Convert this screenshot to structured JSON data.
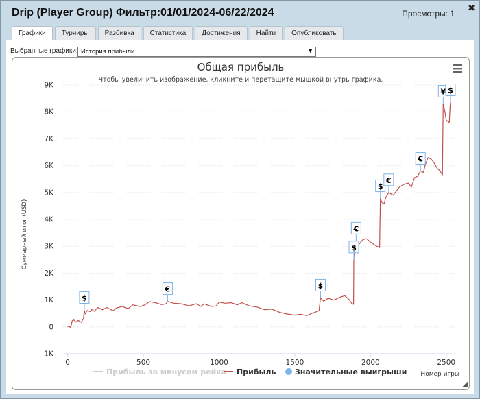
{
  "window": {
    "title": "Drip (Player Group) Фильтр:01/01/2024-06/22/2024",
    "views": "Просмотры: 1",
    "close_glyph": "✖"
  },
  "tabs": [
    {
      "label": "Графики",
      "active": true
    },
    {
      "label": "Турниры",
      "active": false
    },
    {
      "label": "Разбивка",
      "active": false
    },
    {
      "label": "Статистика",
      "active": false
    },
    {
      "label": "Достижения",
      "active": false
    },
    {
      "label": "Найти",
      "active": false
    },
    {
      "label": "Опубликовать",
      "active": false
    }
  ],
  "selector": {
    "label": "Выбранные графики:",
    "value": "История прибыли"
  },
  "chart_data": {
    "type": "line",
    "title": "Общая прибыль",
    "subtitle": "Чтобы увеличить изображение, кликните и перетащите мышкой внутрь графика.",
    "ylabel": "Суммарный итог (USD)",
    "xlabel": "Номер игры",
    "xlim": [
      -30,
      2560
    ],
    "ylim": [
      -1000,
      9000
    ],
    "xticks": [
      0,
      500,
      1000,
      1500,
      2000,
      2500
    ],
    "xtick_labels": [
      "0",
      "500",
      "1000",
      "1500",
      "2000",
      "2500"
    ],
    "yticks": [
      -1000,
      0,
      1000,
      2000,
      3000,
      4000,
      5000,
      6000,
      7000,
      8000,
      9000
    ],
    "ytick_labels": [
      "-1K",
      "0",
      "1K",
      "2K",
      "3K",
      "4K",
      "5K",
      "6K",
      "7K",
      "8K",
      "9K"
    ],
    "grid": true,
    "legend_position": "bottom",
    "legend": [
      {
        "name": "Прибыль за минусом рейка",
        "style": "line",
        "color": "#cccccc",
        "faded": true
      },
      {
        "name": "Прибыль",
        "style": "line",
        "color": "#c0504d",
        "faded": false
      },
      {
        "name": "Значительные выигрыши",
        "style": "circle",
        "color": "#7cb5ec",
        "faded": false
      }
    ],
    "series": [
      {
        "name": "Прибыль",
        "color": "#c0504d",
        "points": [
          [
            0,
            0
          ],
          [
            10,
            40
          ],
          [
            20,
            -40
          ],
          [
            30,
            230
          ],
          [
            40,
            260
          ],
          [
            55,
            180
          ],
          [
            70,
            240
          ],
          [
            90,
            170
          ],
          [
            105,
            320
          ],
          [
            110,
            620
          ],
          [
            115,
            480
          ],
          [
            130,
            610
          ],
          [
            150,
            570
          ],
          [
            160,
            650
          ],
          [
            175,
            580
          ],
          [
            200,
            720
          ],
          [
            230,
            640
          ],
          [
            260,
            720
          ],
          [
            300,
            600
          ],
          [
            320,
            700
          ],
          [
            360,
            760
          ],
          [
            400,
            680
          ],
          [
            430,
            820
          ],
          [
            480,
            760
          ],
          [
            510,
            820
          ],
          [
            540,
            940
          ],
          [
            580,
            900
          ],
          [
            620,
            830
          ],
          [
            650,
            860
          ],
          [
            660,
            950
          ],
          [
            700,
            880
          ],
          [
            750,
            860
          ],
          [
            800,
            780
          ],
          [
            850,
            860
          ],
          [
            880,
            760
          ],
          [
            900,
            860
          ],
          [
            950,
            760
          ],
          [
            980,
            780
          ],
          [
            1000,
            920
          ],
          [
            1040,
            880
          ],
          [
            1080,
            900
          ],
          [
            1120,
            820
          ],
          [
            1150,
            900
          ],
          [
            1200,
            780
          ],
          [
            1250,
            740
          ],
          [
            1300,
            640
          ],
          [
            1350,
            660
          ],
          [
            1400,
            540
          ],
          [
            1450,
            480
          ],
          [
            1500,
            440
          ],
          [
            1540,
            470
          ],
          [
            1580,
            420
          ],
          [
            1620,
            520
          ],
          [
            1660,
            600
          ],
          [
            1670,
            1080
          ],
          [
            1690,
            960
          ],
          [
            1720,
            1060
          ],
          [
            1760,
            1000
          ],
          [
            1800,
            1110
          ],
          [
            1830,
            1160
          ],
          [
            1860,
            1010
          ],
          [
            1875,
            880
          ],
          [
            1888,
            840
          ],
          [
            1890,
            2500
          ],
          [
            1895,
            2950
          ],
          [
            1905,
            3200
          ],
          [
            1920,
            3050
          ],
          [
            1950,
            3250
          ],
          [
            1975,
            3280
          ],
          [
            2000,
            3150
          ],
          [
            2040,
            3000
          ],
          [
            2060,
            2950
          ],
          [
            2065,
            4780
          ],
          [
            2075,
            4630
          ],
          [
            2090,
            4580
          ],
          [
            2100,
            4800
          ],
          [
            2120,
            5000
          ],
          [
            2150,
            4900
          ],
          [
            2190,
            5200
          ],
          [
            2220,
            5300
          ],
          [
            2250,
            5350
          ],
          [
            2270,
            5200
          ],
          [
            2290,
            5550
          ],
          [
            2310,
            5600
          ],
          [
            2330,
            5800
          ],
          [
            2350,
            5750
          ],
          [
            2360,
            6000
          ],
          [
            2380,
            6300
          ],
          [
            2400,
            6250
          ],
          [
            2420,
            6100
          ],
          [
            2440,
            5900
          ],
          [
            2460,
            5800
          ],
          [
            2475,
            5650
          ],
          [
            2480,
            8300
          ],
          [
            2490,
            8050
          ],
          [
            2500,
            7700
          ],
          [
            2520,
            7600
          ],
          [
            2525,
            8150
          ],
          [
            2528,
            8350
          ]
        ]
      }
    ],
    "flags": [
      {
        "symbol": "$",
        "x": 110,
        "y": 620
      },
      {
        "symbol": "€",
        "x": 660,
        "y": 950
      },
      {
        "symbol": "$",
        "x": 1670,
        "y": 1080
      },
      {
        "symbol": "$",
        "x": 1890,
        "y": 2500
      },
      {
        "symbol": "€",
        "x": 1905,
        "y": 3200
      },
      {
        "symbol": "$",
        "x": 2065,
        "y": 4780
      },
      {
        "symbol": "€",
        "x": 2120,
        "y": 5000
      },
      {
        "symbol": "€",
        "x": 2330,
        "y": 5800
      },
      {
        "symbol": "¥",
        "x": 2480,
        "y": 8300
      },
      {
        "symbol": "$",
        "x": 2528,
        "y": 8350
      }
    ]
  }
}
